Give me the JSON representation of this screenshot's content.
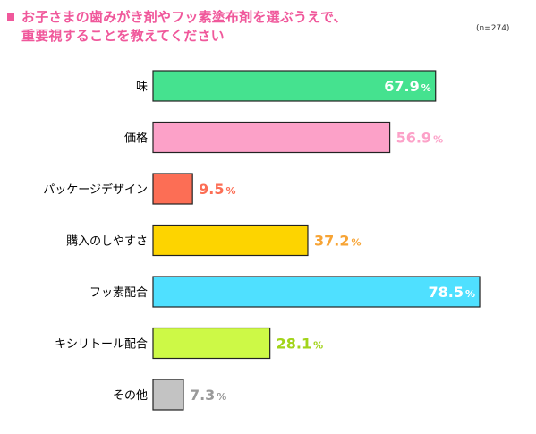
{
  "header": {
    "title_line_1": "お子さまの歯みがき剤やフッ素塗布剤を選ぶうえで、",
    "title_line_2": "重要視することを教えてください",
    "sample_size": "(n=274)"
  },
  "chart_data": {
    "type": "bar",
    "orientation": "horizontal",
    "title": "お子さまの歯みがき剤やフッ素塗布剤を選ぶうえで、重要視することを教えてください",
    "unit": "%",
    "xlim": [
      0,
      100
    ],
    "grid": false,
    "categories": [
      "味",
      "価格",
      "パッケージデザイン",
      "購入のしやすさ",
      "フッ素配合",
      "キシリトール配合",
      "その他"
    ],
    "values": [
      67.9,
      56.9,
      9.5,
      37.2,
      78.5,
      28.1,
      7.3
    ],
    "value_labels": [
      "67.9",
      "56.9",
      "9.5",
      "37.2",
      "78.5",
      "28.1",
      "7.3"
    ],
    "colors": [
      "#45e28f",
      "#fca1c8",
      "#fc6e55",
      "#fdd400",
      "#4fe0ff",
      "#cdf946",
      "#c3c3c3"
    ],
    "label_colors": [
      "#ffffff",
      "#fca1c8",
      "#fc6e55",
      "#f7a435",
      "#ffffff",
      "#a2d41a",
      "#9a9a9a"
    ],
    "label_inside": [
      true,
      false,
      false,
      false,
      true,
      false,
      false
    ]
  }
}
